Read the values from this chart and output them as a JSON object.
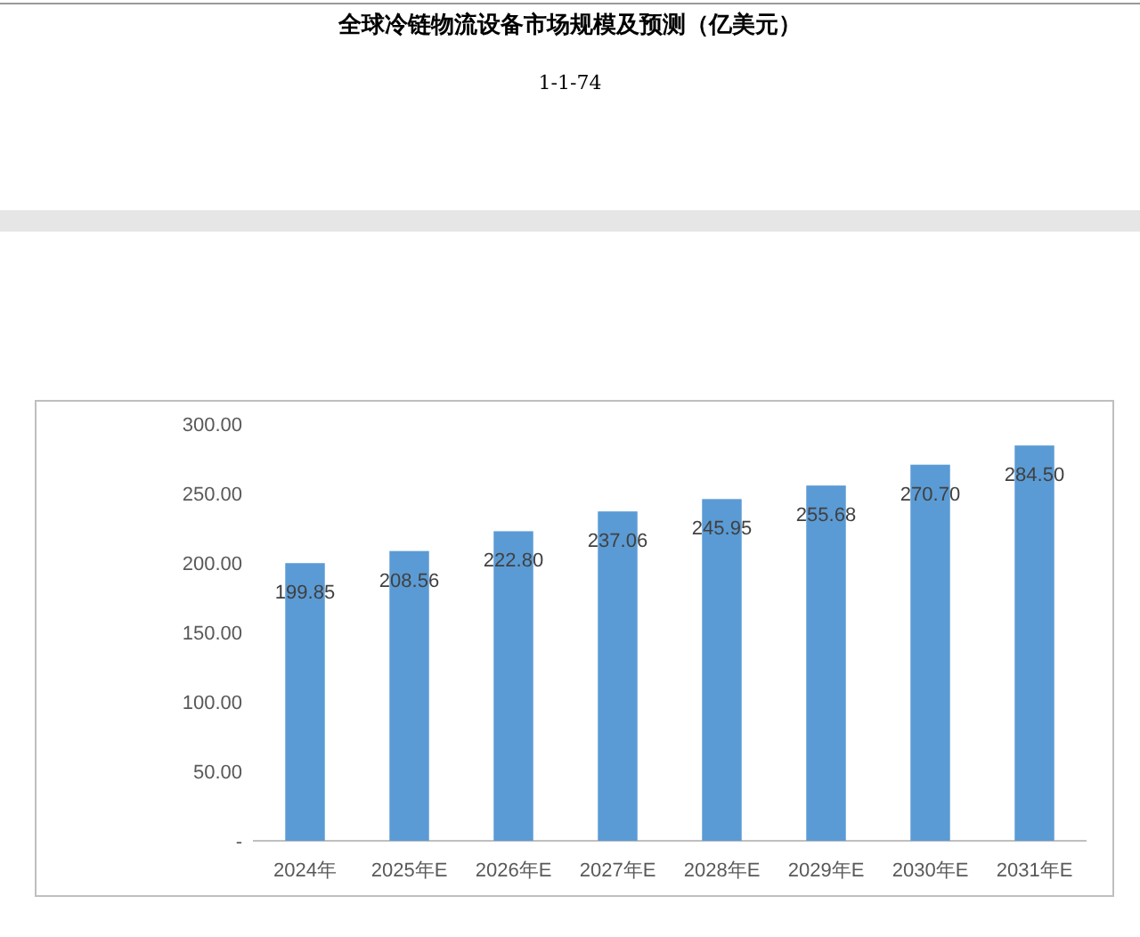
{
  "chart_data": {
    "type": "bar",
    "title": "全球冷链物流设备市场规模及预测（亿美元）",
    "subtitle": "1-1-74",
    "categories": [
      "2024年",
      "2025年E",
      "2026年E",
      "2027年E",
      "2028年E",
      "2029年E",
      "2030年E",
      "2031年E"
    ],
    "values": [
      199.85,
      208.56,
      222.8,
      237.06,
      245.95,
      255.68,
      270.7,
      284.5
    ],
    "value_labels": [
      "199.85",
      "208.56",
      "222.80",
      "237.06",
      "245.95",
      "255.68",
      "270.70",
      "284.50"
    ],
    "color": "#5b9bd5",
    "ylim": [
      0,
      300
    ],
    "yticks": [
      {
        "value": 0,
        "label": "-"
      },
      {
        "value": 50,
        "label": "50.00"
      },
      {
        "value": 100,
        "label": "100.00"
      },
      {
        "value": 150,
        "label": "150.00"
      },
      {
        "value": 200,
        "label": "200.00"
      },
      {
        "value": 250,
        "label": "250.00"
      },
      {
        "value": 300,
        "label": "300.00"
      }
    ],
    "grid": false
  }
}
